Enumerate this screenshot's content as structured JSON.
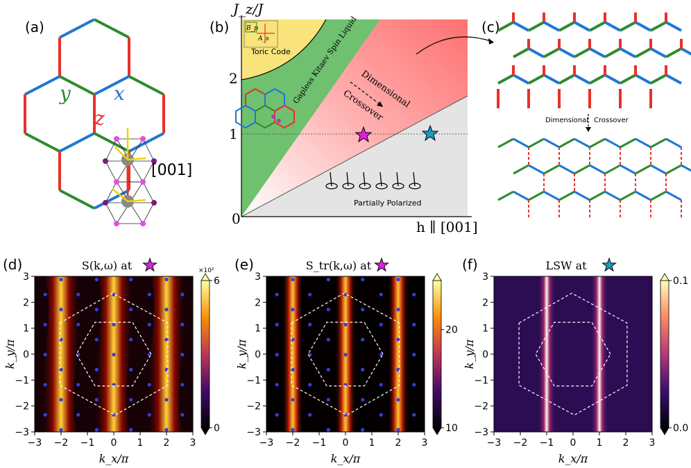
{
  "panel_labels": {
    "a": "(a)",
    "b": "(b)",
    "c": "(c)",
    "d": "(d)",
    "e": "(e)",
    "f": "(f)"
  },
  "colors": {
    "x_bond": "#1f77d4",
    "y_bond": "#2e8b2e",
    "z_bond": "#e8312a",
    "magenta_star": "#e020e0",
    "cyan_star": "#1a9bc4",
    "bz_line": "#ffffff",
    "dots": "#2f3fe0"
  },
  "panel_a": {
    "bond_x": "x",
    "bond_y": "y",
    "bond_z": "z",
    "direction": "[001]"
  },
  "panel_b": {
    "ylabel": "J_z/J",
    "xlabel": "h ∥ [001]",
    "origin": "0",
    "yticks": [
      "1",
      "2"
    ],
    "phases": [
      "Toric Code",
      "Gapless Kitaev Spin Liquid",
      "Dimensional",
      "Crossover",
      "Partially Polarized"
    ],
    "plaquette": [
      "B_p",
      "A_s"
    ]
  },
  "panel_c": {
    "crossover_label": "Dimensional",
    "crossover_label2": "Crossover"
  },
  "chart_data": [
    {
      "type": "heatmap",
      "panel": "d",
      "title": "S(k,ω) at",
      "xlabel": "k_x/π",
      "ylabel": "k_y/π",
      "xlim": [
        -3,
        3
      ],
      "ylim": [
        -3,
        3
      ],
      "xticks": [
        "−3",
        "−2",
        "−1",
        "0",
        "1",
        "2",
        "3"
      ],
      "yticks": [
        "3",
        "2",
        "1",
        "0",
        "−1",
        "−2",
        "−3"
      ],
      "colorbar": {
        "min": 0,
        "max": 6,
        "scale_label": "×10²",
        "ticks": [
          "6",
          "0"
        ]
      },
      "stripes": [
        -2,
        0,
        2
      ],
      "colormap": "inferno"
    },
    {
      "type": "heatmap",
      "panel": "e",
      "title": "S_tr(k,ω) at",
      "xlabel": "k_x/π",
      "ylabel": "k_y/π",
      "xlim": [
        -3,
        3
      ],
      "ylim": [
        -3,
        3
      ],
      "xticks": [
        "−3",
        "−2",
        "−1",
        "0",
        "1",
        "2",
        "3"
      ],
      "yticks": [
        "3",
        "2",
        "1",
        "0",
        "−1",
        "−2",
        "−3"
      ],
      "colorbar": {
        "min": 10,
        "max": 25,
        "ticks": [
          "20",
          "10"
        ]
      },
      "stripes": [
        -2,
        0,
        2
      ],
      "colormap": "inferno"
    },
    {
      "type": "heatmap",
      "panel": "f",
      "title": "LSW at",
      "xlabel": "k_x/π",
      "ylabel": "k_y/π",
      "xlim": [
        -3,
        3
      ],
      "ylim": [
        -3,
        3
      ],
      "xticks": [
        "−3",
        "−2",
        "−1",
        "0",
        "1",
        "2",
        "3"
      ],
      "yticks": [
        "3",
        "2",
        "1",
        "0",
        "−1",
        "−2",
        "−3"
      ],
      "colorbar": {
        "min": 0.0,
        "max": 0.1,
        "ticks": [
          "0.1",
          "0.0"
        ]
      },
      "stripes": [
        -1,
        1
      ],
      "colormap": "magma"
    }
  ]
}
